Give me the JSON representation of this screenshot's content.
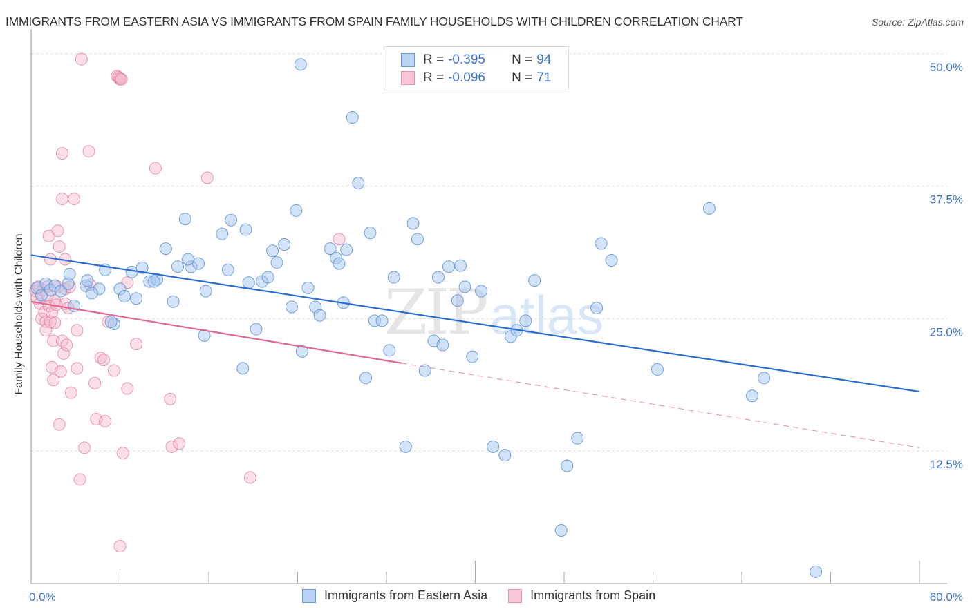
{
  "title": "IMMIGRANTS FROM EASTERN ASIA VS IMMIGRANTS FROM SPAIN FAMILY HOUSEHOLDS WITH CHILDREN CORRELATION CHART",
  "source": "Source: ZipAtlas.com",
  "watermark": {
    "zip": "ZIP",
    "atlas": "atlas"
  },
  "legend": {
    "rows": [
      {
        "r_label": "R =",
        "r_value": "-0.395",
        "n_label": "N =",
        "n_value": "94"
      },
      {
        "r_label": "R =",
        "r_value": "-0.096",
        "n_label": "N =",
        "n_value": "71"
      }
    ]
  },
  "bottom_legend": [
    "Immigrants from Eastern Asia",
    "Immigrants from Spain"
  ],
  "colors": {
    "blue_fill": "#a8c8f0",
    "blue_stroke": "#5a8fd8",
    "blue_line": "#2a6dd0",
    "pink_fill": "#f5b8cc",
    "pink_stroke": "#e07898",
    "pink_line": "#e06890",
    "tick_text": "#3a73c9"
  },
  "chart_data": {
    "type": "scatter",
    "title": "IMMIGRANTS FROM EASTERN ASIA VS IMMIGRANTS FROM SPAIN FAMILY HOUSEHOLDS WITH CHILDREN CORRELATION CHART",
    "xlabel": "",
    "ylabel": "Family Households with Children",
    "xlim": [
      0,
      60
    ],
    "ylim": [
      0,
      52
    ],
    "x_tick_labels": [
      "0.0%",
      "60.0%"
    ],
    "x_ticks_minor": [
      0,
      6,
      12,
      18,
      24,
      30,
      36,
      42,
      48,
      54,
      60
    ],
    "y_ticks": [
      12.5,
      25.0,
      37.5,
      50.0
    ],
    "y_tick_labels": [
      "12.5%",
      "25.0%",
      "37.5%",
      "50.0%"
    ],
    "grid": true,
    "legend_position": "top-center",
    "series": [
      {
        "name": "Immigrants from Eastern Asia",
        "r": -0.395,
        "n": 94,
        "trend": {
          "x0": 0,
          "y0": 31.0,
          "x1": 60,
          "y1": 18.1,
          "style": "solid"
        },
        "points": [
          [
            0.4,
            27.9
          ],
          [
            0.7,
            27.2
          ],
          [
            1.0,
            28.3
          ],
          [
            1.3,
            27.7
          ],
          [
            1.6,
            28.1
          ],
          [
            2.0,
            27.6
          ],
          [
            2.5,
            28.3
          ],
          [
            2.9,
            26.2
          ],
          [
            2.6,
            29.2
          ],
          [
            3.7,
            28.1
          ],
          [
            3.8,
            28.6
          ],
          [
            4.6,
            27.8
          ],
          [
            4.1,
            27.4
          ],
          [
            5.0,
            29.6
          ],
          [
            5.6,
            24.5
          ],
          [
            5.4,
            24.7
          ],
          [
            6.0,
            27.8
          ],
          [
            6.3,
            27.1
          ],
          [
            7.1,
            26.9
          ],
          [
            6.8,
            29.4
          ],
          [
            7.5,
            29.8
          ],
          [
            8.0,
            28.5
          ],
          [
            8.5,
            28.7
          ],
          [
            8.3,
            28.5
          ],
          [
            9.6,
            26.6
          ],
          [
            9.1,
            31.6
          ],
          [
            10.4,
            34.4
          ],
          [
            9.9,
            29.9
          ],
          [
            10.8,
            29.9
          ],
          [
            11.3,
            30.2
          ],
          [
            10.6,
            30.6
          ],
          [
            11.8,
            27.6
          ],
          [
            11.7,
            23.4
          ],
          [
            12.9,
            33.0
          ],
          [
            13.5,
            34.3
          ],
          [
            13.3,
            29.6
          ],
          [
            14.3,
            20.3
          ],
          [
            14.7,
            28.4
          ],
          [
            14.5,
            33.4
          ],
          [
            15.2,
            24.0
          ],
          [
            15.6,
            28.5
          ],
          [
            16.0,
            28.9
          ],
          [
            16.3,
            31.4
          ],
          [
            16.6,
            30.3
          ],
          [
            17.1,
            32.0
          ],
          [
            17.6,
            26.1
          ],
          [
            17.9,
            35.2
          ],
          [
            18.3,
            21.9
          ],
          [
            18.7,
            27.9
          ],
          [
            19.2,
            26.1
          ],
          [
            19.5,
            25.3
          ],
          [
            20.2,
            31.6
          ],
          [
            20.6,
            30.7
          ],
          [
            20.8,
            30.2
          ],
          [
            21.3,
            31.5
          ],
          [
            21.1,
            26.5
          ],
          [
            22.1,
            37.8
          ],
          [
            21.7,
            44.0
          ],
          [
            22.6,
            19.4
          ],
          [
            22.9,
            33.1
          ],
          [
            23.2,
            24.8
          ],
          [
            23.7,
            24.8
          ],
          [
            24.2,
            22.0
          ],
          [
            24.5,
            28.9
          ],
          [
            25.3,
            12.9
          ],
          [
            25.8,
            34.0
          ],
          [
            26.1,
            32.5
          ],
          [
            26.6,
            20.1
          ],
          [
            27.2,
            22.9
          ],
          [
            27.5,
            28.9
          ],
          [
            27.8,
            22.5
          ],
          [
            28.2,
            29.9
          ],
          [
            28.8,
            26.7
          ],
          [
            29.0,
            30.0
          ],
          [
            29.3,
            28.0
          ],
          [
            29.8,
            21.4
          ],
          [
            30.4,
            27.6
          ],
          [
            31.2,
            12.9
          ],
          [
            32.0,
            12.1
          ],
          [
            32.4,
            23.3
          ],
          [
            32.8,
            23.9
          ],
          [
            33.4,
            24.8
          ],
          [
            34.0,
            28.6
          ],
          [
            36.2,
            11.1
          ],
          [
            36.9,
            13.7
          ],
          [
            38.2,
            26.0
          ],
          [
            38.5,
            32.1
          ],
          [
            39.2,
            30.5
          ],
          [
            42.3,
            20.2
          ],
          [
            45.8,
            35.4
          ],
          [
            48.7,
            17.7
          ],
          [
            49.5,
            19.4
          ],
          [
            35.8,
            5.0
          ],
          [
            18.2,
            49.0
          ],
          [
            53.0,
            1.1
          ]
        ]
      },
      {
        "name": "Immigrants from Spain",
        "r": -0.096,
        "n": 71,
        "trend": {
          "x0": 0,
          "y0": 26.6,
          "x1": 25.0,
          "y1": 20.8,
          "x_end_dashed": 60,
          "y_end_dashed": 12.8,
          "style": "solid-then-dashed"
        },
        "points": [
          [
            0.3,
            27.6
          ],
          [
            0.4,
            26.9
          ],
          [
            0.5,
            28.0
          ],
          [
            0.6,
            26.4
          ],
          [
            0.7,
            25.0
          ],
          [
            0.8,
            27.7
          ],
          [
            0.9,
            25.6
          ],
          [
            1.0,
            24.7
          ],
          [
            1.1,
            28.0
          ],
          [
            1.0,
            23.9
          ],
          [
            1.2,
            26.2
          ],
          [
            1.3,
            24.7
          ],
          [
            1.4,
            25.6
          ],
          [
            1.2,
            32.8
          ],
          [
            1.5,
            22.9
          ],
          [
            1.4,
            20.4
          ],
          [
            1.5,
            19.2
          ],
          [
            1.3,
            30.6
          ],
          [
            1.6,
            24.6
          ],
          [
            1.6,
            26.7
          ],
          [
            1.8,
            33.3
          ],
          [
            1.8,
            28.0
          ],
          [
            1.9,
            31.8
          ],
          [
            2.0,
            20.0
          ],
          [
            1.9,
            15.0
          ],
          [
            2.1,
            22.9
          ],
          [
            2.2,
            21.7
          ],
          [
            2.3,
            26.4
          ],
          [
            2.1,
            36.3
          ],
          [
            2.1,
            40.6
          ],
          [
            2.3,
            27.8
          ],
          [
            2.3,
            30.6
          ],
          [
            2.4,
            22.5
          ],
          [
            2.5,
            26.0
          ],
          [
            2.6,
            28.0
          ],
          [
            2.7,
            18.0
          ],
          [
            2.9,
            36.3
          ],
          [
            3.1,
            23.9
          ],
          [
            3.1,
            20.3
          ],
          [
            3.3,
            9.8
          ],
          [
            3.6,
            12.8
          ],
          [
            3.9,
            40.8
          ],
          [
            4.0,
            28.2
          ],
          [
            4.3,
            18.9
          ],
          [
            4.4,
            15.5
          ],
          [
            4.7,
            21.3
          ],
          [
            5.0,
            15.3
          ],
          [
            4.9,
            21.1
          ],
          [
            5.2,
            24.7
          ],
          [
            5.6,
            20.1
          ],
          [
            6.0,
            47.6
          ],
          [
            5.8,
            47.9
          ],
          [
            5.9,
            47.8
          ],
          [
            6.0,
            47.7
          ],
          [
            6.1,
            47.6
          ],
          [
            6.2,
            12.3
          ],
          [
            6.5,
            28.4
          ],
          [
            6.5,
            18.4
          ],
          [
            7.1,
            22.6
          ],
          [
            8.4,
            39.2
          ],
          [
            9.4,
            17.4
          ],
          [
            9.5,
            12.9
          ],
          [
            10.0,
            13.2
          ],
          [
            11.9,
            38.3
          ],
          [
            14.8,
            10.0
          ],
          [
            20.8,
            32.5
          ],
          [
            3.4,
            49.5
          ],
          [
            6.0,
            3.5
          ],
          [
            0.5,
            28.0
          ],
          [
            1.1,
            27.2
          ],
          [
            1.7,
            26.3
          ]
        ]
      }
    ]
  }
}
